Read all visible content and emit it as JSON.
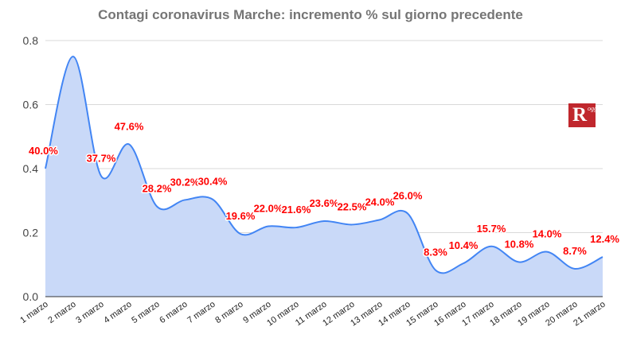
{
  "chart_data": {
    "type": "area",
    "title": "Contagi coronavirus Marche: incremento % sul giorno precedente",
    "xlabel": "",
    "ylabel": "",
    "ylim": [
      0,
      0.8
    ],
    "yticks": [
      "0.0",
      "0.2",
      "0.4",
      "0.6",
      "0.8"
    ],
    "grid": true,
    "legend": "none",
    "categories": [
      "1 marzo",
      "2 marzo",
      "3 marzo",
      "4 marzo",
      "5 marzo",
      "6 marzo",
      "7 marzo",
      "8 marzo",
      "9 marzo",
      "10 marzo",
      "11 marzo",
      "12 marzo",
      "13 marzo",
      "14 marzo",
      "15 marzo",
      "16 marzo",
      "17 marzo",
      "18 marzo",
      "19 marzo",
      "20 marzo",
      "21 marzo"
    ],
    "values": [
      0.4,
      0.75,
      0.377,
      0.476,
      0.282,
      0.302,
      0.304,
      0.196,
      0.22,
      0.216,
      0.236,
      0.225,
      0.24,
      0.26,
      0.083,
      0.104,
      0.157,
      0.108,
      0.14,
      0.087,
      0.124
    ],
    "data_labels": [
      "40.0%",
      "",
      "37.7%",
      "47.6%",
      "28.2%",
      "30.2%",
      "30.4%",
      "19.6%",
      "22.0%",
      "21.6%",
      "23.6%",
      "22.5%",
      "24.0%",
      "26.0%",
      "8.3%",
      "10.4%",
      "15.7%",
      "10.8%",
      "14.0%",
      "8.7%",
      "12.4%"
    ],
    "colors": {
      "line": "#4285f4",
      "fill": "#c9d9f8",
      "label": "#ff0000"
    }
  },
  "logo": {
    "letter": "R",
    "tag": "oggi"
  }
}
